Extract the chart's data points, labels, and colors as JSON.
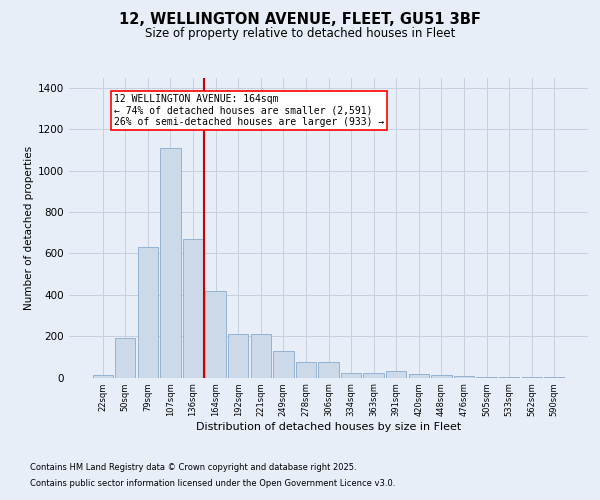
{
  "title_line1": "12, WELLINGTON AVENUE, FLEET, GU51 3BF",
  "title_line2": "Size of property relative to detached houses in Fleet",
  "xlabel": "Distribution of detached houses by size in Fleet",
  "ylabel": "Number of detached properties",
  "categories": [
    "22sqm",
    "50sqm",
    "79sqm",
    "107sqm",
    "136sqm",
    "164sqm",
    "192sqm",
    "221sqm",
    "249sqm",
    "278sqm",
    "306sqm",
    "334sqm",
    "363sqm",
    "391sqm",
    "420sqm",
    "448sqm",
    "476sqm",
    "505sqm",
    "533sqm",
    "562sqm",
    "590sqm"
  ],
  "values": [
    10,
    190,
    630,
    1110,
    670,
    420,
    210,
    210,
    130,
    75,
    75,
    20,
    20,
    30,
    15,
    10,
    5,
    2,
    2,
    1,
    1
  ],
  "bar_color": "#ccd9e8",
  "bar_edge_color": "#8aabcc",
  "vline_color": "#cc0000",
  "annotation_title": "12 WELLINGTON AVENUE: 164sqm",
  "annotation_line2": "← 74% of detached houses are smaller (2,591)",
  "annotation_line3": "26% of semi-detached houses are larger (933) →",
  "background_color": "#e8eef8",
  "plot_background": "#e8eef8",
  "ylim": [
    0,
    1450
  ],
  "yticks": [
    0,
    200,
    400,
    600,
    800,
    1000,
    1200,
    1400
  ],
  "footer_line1": "Contains HM Land Registry data © Crown copyright and database right 2025.",
  "footer_line2": "Contains public sector information licensed under the Open Government Licence v3.0.",
  "grid_color": "#c8d0e0",
  "title_fontsize": 10.5,
  "subtitle_fontsize": 8.5,
  "ylabel_fontsize": 7.5,
  "xlabel_fontsize": 8.0,
  "ytick_fontsize": 7.5,
  "xtick_fontsize": 6.0,
  "ann_fontsize": 7.0,
  "footer_fontsize": 6.0
}
